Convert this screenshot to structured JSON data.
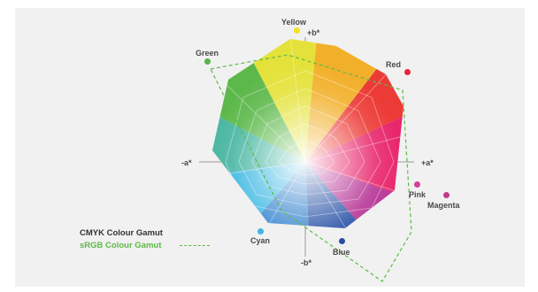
{
  "axes": {
    "pos_b": "+b*",
    "neg_b": "-b*",
    "pos_a": "+a*",
    "neg_a": "-a*"
  },
  "colors": [
    {
      "name": "Yellow",
      "hex": "#f4e21c"
    },
    {
      "name": "Red",
      "hex": "#e8253a"
    },
    {
      "name": "Green",
      "hex": "#56b44a"
    },
    {
      "name": "Cyan",
      "hex": "#3fb6e6"
    },
    {
      "name": "Blue",
      "hex": "#2a4fa0"
    },
    {
      "name": "Pink",
      "hex": "#d43f98"
    },
    {
      "name": "Magenta",
      "hex": "#c43a8c"
    }
  ],
  "legend": {
    "cmyk": "CMYK Colour Gamut",
    "srgb": "sRGB Colour Gamut"
  },
  "style": {
    "srgb_line_color": "#5dba46",
    "panel_background": "#f1f1f1"
  }
}
